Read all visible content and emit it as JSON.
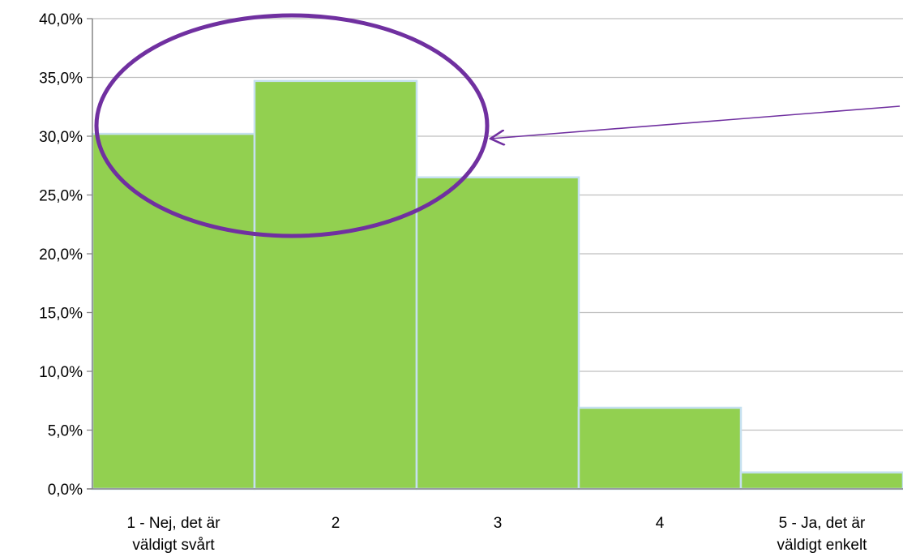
{
  "chart_data": {
    "type": "bar",
    "categories": [
      [
        "1 - Nej, det är",
        "väldigt svårt"
      ],
      [
        "2"
      ],
      [
        "3"
      ],
      [
        "4"
      ],
      [
        "5 - Ja, det är",
        "väldigt enkelt"
      ]
    ],
    "values": [
      30.2,
      34.7,
      26.5,
      6.9,
      1.4
    ],
    "ylim": [
      0,
      40
    ],
    "yticks": [
      "0,0%",
      "5,0%",
      "10,0%",
      "15,0%",
      "20,0%",
      "25,0%",
      "30,0%",
      "35,0%",
      "40,0%"
    ],
    "title": "",
    "xlabel": "",
    "ylabel": "",
    "grid": true,
    "bar_gap": 0,
    "annotation": {
      "shape": "ellipse",
      "encloses_categories": [
        "1 - Nej, det är väldigt svårt",
        "2"
      ],
      "arrow": true
    },
    "colors": {
      "bar_fill": "#92d050",
      "bar_edge": "#c5e0ef",
      "grid": "#bfbfbf",
      "annotation": "#7030a0"
    }
  }
}
